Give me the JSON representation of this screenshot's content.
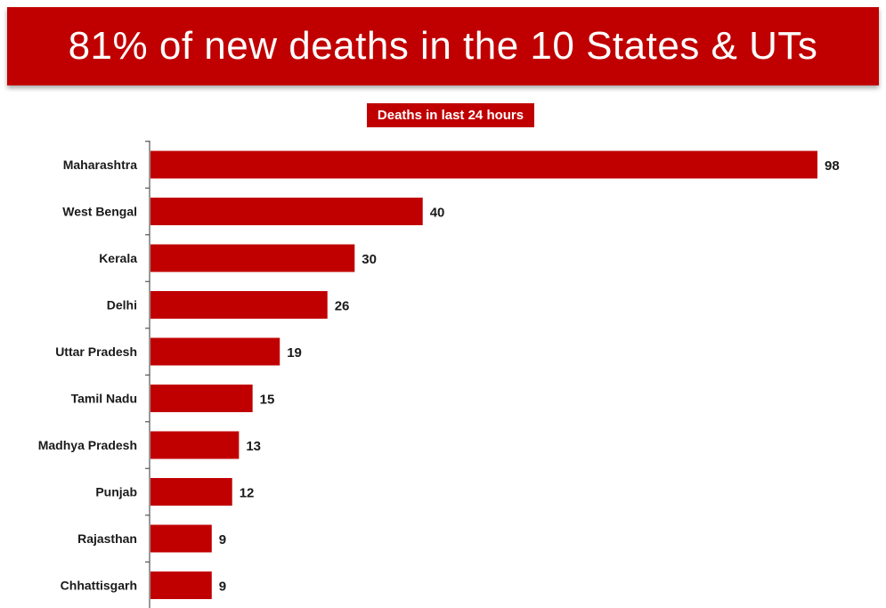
{
  "header": {
    "title": "81% of new deaths in the 10 States & UTs"
  },
  "colors": {
    "accent": "#c00000",
    "bar": "#c00000",
    "text": "#1a1a1a"
  },
  "chart_data": {
    "type": "bar",
    "orientation": "horizontal",
    "title": "Deaths in last 24 hours",
    "categories": [
      "Maharashtra",
      "West Bengal",
      "Kerala",
      "Delhi",
      "Uttar Pradesh",
      "Tamil Nadu",
      "Madhya Pradesh",
      "Punjab",
      "Rajasthan",
      "Chhattisgarh"
    ],
    "values": [
      98,
      40,
      30,
      26,
      19,
      15,
      13,
      12,
      9,
      9
    ],
    "xlim": [
      0,
      98
    ],
    "data_labels": true,
    "grid": false
  }
}
